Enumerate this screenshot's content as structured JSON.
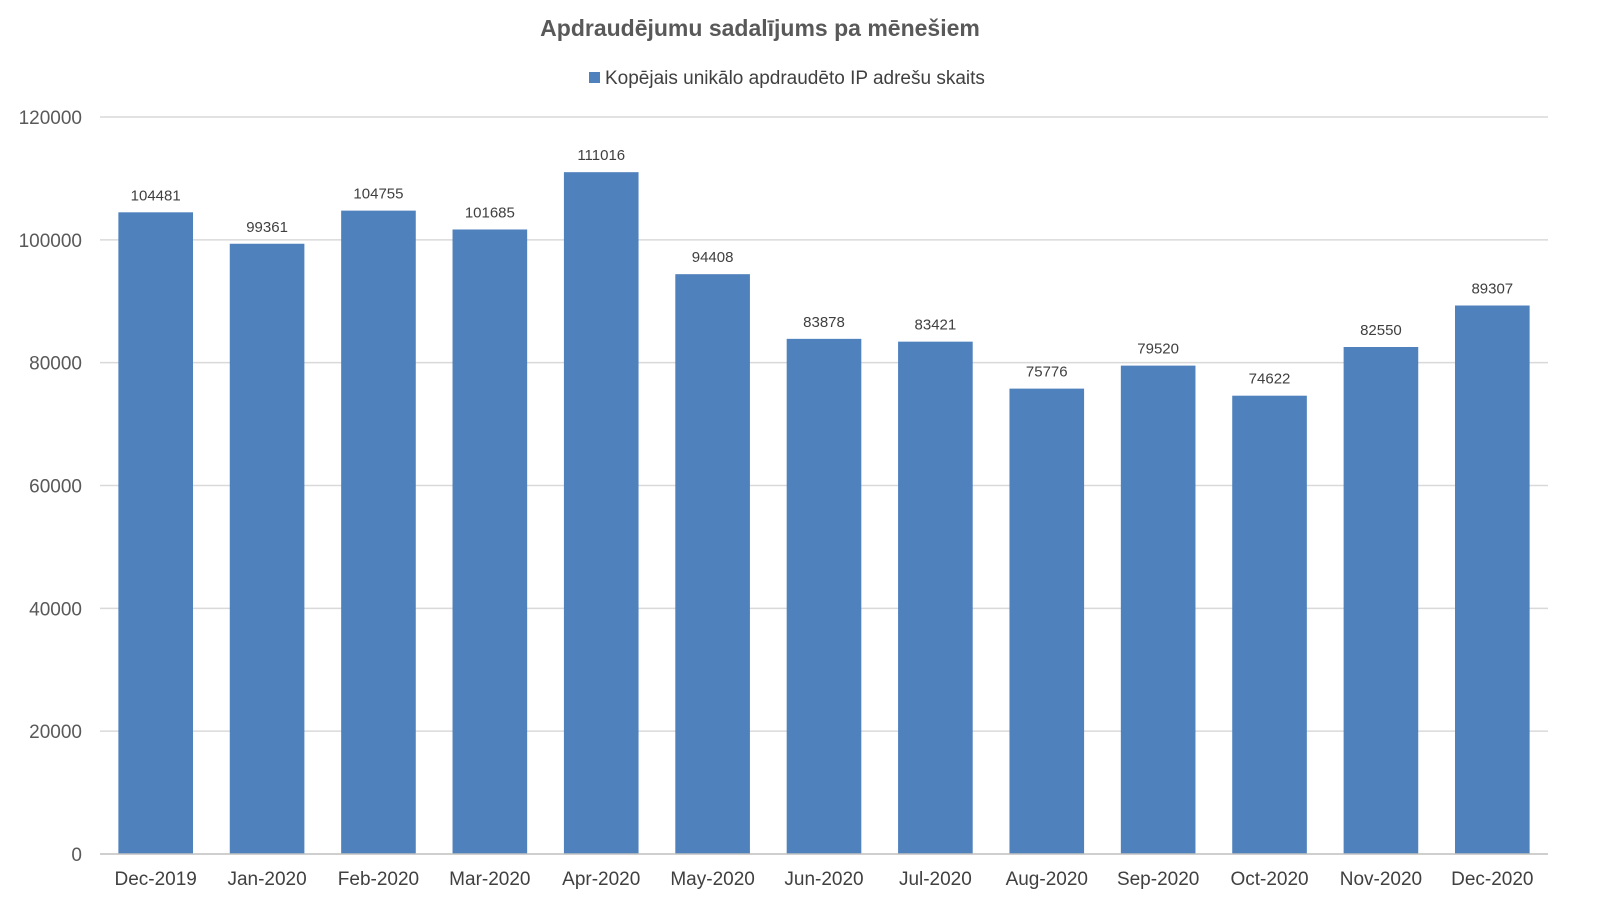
{
  "chart_data": {
    "type": "bar",
    "title": "Apdraudējumu  sadalījums  pa mēnešiem",
    "xlabel": "",
    "ylabel": "",
    "categories": [
      "Dec-2019",
      "Jan-2020",
      "Feb-2020",
      "Mar-2020",
      "Apr-2020",
      "May-2020",
      "Jun-2020",
      "Jul-2020",
      "Aug-2020",
      "Sep-2020",
      "Oct-2020",
      "Nov-2020",
      "Dec-2020"
    ],
    "series": [
      {
        "name": "Kopējais unikālo apdraudēto IP adrešu skaits",
        "color": "#4f81bd",
        "values": [
          104481,
          99361,
          104755,
          101685,
          111016,
          94408,
          83878,
          83421,
          75776,
          79520,
          74622,
          82550,
          89307
        ]
      }
    ],
    "ylim": [
      0,
      120000
    ],
    "yticks": [
      0,
      20000,
      40000,
      60000,
      80000,
      100000,
      120000
    ],
    "grid": true,
    "legend_position": "top",
    "data_labels": true
  }
}
